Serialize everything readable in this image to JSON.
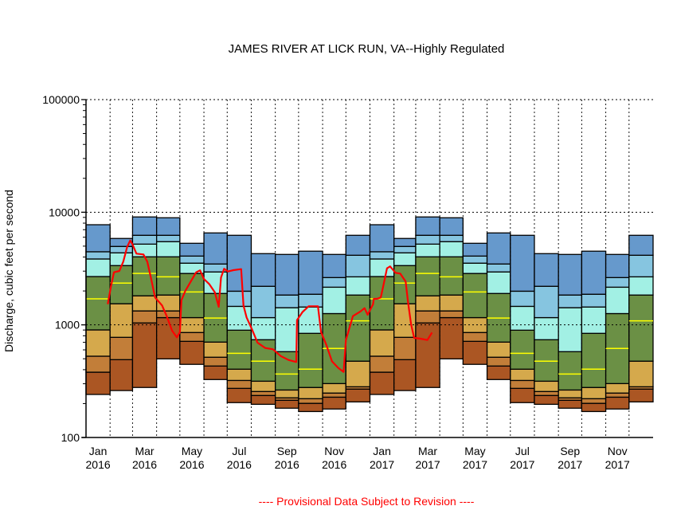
{
  "chart_data": {
    "type": "area",
    "title": "JAMES RIVER AT LICK RUN, VA--Highly Regulated",
    "ylabel": "Discharge, cubic feet per second",
    "xlabel": "",
    "footer": "---- Provisional Data Subject to Revision ----",
    "yscale": "log",
    "ylim": [
      100,
      100000
    ],
    "xlim": [
      "2016-01-01",
      "2018-01-01"
    ],
    "grid": "dotted vertical at month boundaries, dotted horizontal at decades",
    "y_ticks": [
      "100",
      "1000",
      "10000",
      "100000"
    ],
    "x_ticks": [
      {
        "month": "Jan",
        "year": "2016"
      },
      {
        "month": "Mar",
        "year": "2016"
      },
      {
        "month": "May",
        "year": "2016"
      },
      {
        "month": "Jul",
        "year": "2016"
      },
      {
        "month": "Sep",
        "year": "2016"
      },
      {
        "month": "Nov",
        "year": "2016"
      },
      {
        "month": "Jan",
        "year": "2017"
      },
      {
        "month": "Mar",
        "year": "2017"
      },
      {
        "month": "May",
        "year": "2017"
      },
      {
        "month": "Jul",
        "year": "2017"
      },
      {
        "month": "Sep",
        "year": "2017"
      },
      {
        "month": "Nov",
        "year": "2017"
      }
    ],
    "band_colors": [
      "#AB5623",
      "#C27E39",
      "#D5A94C",
      "#6B9045",
      "#A2F0E4",
      "#86C5E0",
      "#6699CC"
    ],
    "median_color": "#FFFF00",
    "line_color": "#FF0000",
    "monthly_bands": [
      {
        "month": "Jan",
        "levels": [
          241,
          380,
          527,
          902,
          2685,
          3846,
          4457,
          7745
        ],
        "median": 1702
      },
      {
        "month": "Feb",
        "levels": [
          261,
          491,
          775,
          1540,
          3360,
          4360,
          4970,
          5850
        ],
        "median": 2350
      },
      {
        "month": "Mar",
        "levels": [
          278,
          1040,
          1330,
          1810,
          4020,
          5210,
          6240,
          9080
        ],
        "median": 2860
      },
      {
        "month": "Apr",
        "levels": [
          499,
          1160,
          1330,
          1840,
          4020,
          5480,
          6240,
          8930
        ],
        "median": 2670
      },
      {
        "month": "May",
        "levels": [
          446,
          714,
          855,
          1160,
          2860,
          3530,
          4080,
          5300
        ],
        "median": 1960
      },
      {
        "month": "Jun",
        "levels": [
          327,
          431,
          516,
          703,
          1900,
          2950,
          3470,
          6550
        ],
        "median": 1150
      },
      {
        "month": "Jul",
        "levels": [
          204,
          273,
          321,
          404,
          897,
          1460,
          1990,
          6240
        ],
        "median": 559
      },
      {
        "month": "Aug",
        "levels": [
          197,
          236,
          256,
          316,
          738,
          1160,
          2200,
          4290
        ],
        "median": 476
      },
      {
        "month": "Sep",
        "levels": [
          182,
          214,
          225,
          264,
          578,
          1420,
          1840,
          4220
        ],
        "median": 366
      },
      {
        "month": "Oct",
        "levels": [
          170,
          201,
          221,
          278,
          841,
          1440,
          1870,
          4510
        ],
        "median": 404
      },
      {
        "month": "Nov",
        "levels": [
          179,
          228,
          248,
          301,
          1260,
          2160,
          2630,
          4220
        ],
        "median": 617
      },
      {
        "month": "Dec",
        "levels": [
          207,
          269,
          282,
          476,
          1840,
          2670,
          4150,
          6240
        ],
        "median": 1085
      }
    ],
    "series": [
      {
        "points": [
          [
            "2016-01-29",
            1527
          ],
          [
            "2016-02-02",
            2175
          ],
          [
            "2016-02-06",
            2930
          ],
          [
            "2016-02-13",
            3012
          ],
          [
            "2016-02-18",
            3646
          ],
          [
            "2016-02-23",
            4910
          ],
          [
            "2016-02-27",
            5620
          ],
          [
            "2016-03-01",
            5180
          ],
          [
            "2016-03-06",
            4290
          ],
          [
            "2016-03-15",
            4220
          ],
          [
            "2016-03-20",
            3646
          ],
          [
            "2016-03-25",
            2560
          ],
          [
            "2016-03-30",
            1750
          ],
          [
            "2016-04-08",
            1487
          ],
          [
            "2016-04-14",
            1196
          ],
          [
            "2016-04-21",
            887
          ],
          [
            "2016-04-27",
            775
          ],
          [
            "2016-05-01",
            863
          ],
          [
            "2016-05-03",
            1656
          ],
          [
            "2016-05-08",
            2004
          ],
          [
            "2016-05-15",
            2425
          ],
          [
            "2016-05-22",
            2930
          ],
          [
            "2016-05-27",
            3047
          ],
          [
            "2016-06-01",
            2560
          ],
          [
            "2016-06-08",
            2294
          ],
          [
            "2016-06-15",
            1950
          ],
          [
            "2016-06-20",
            1447
          ],
          [
            "2016-06-23",
            2631
          ],
          [
            "2016-06-27",
            3146
          ],
          [
            "2016-07-02",
            2978
          ],
          [
            "2016-07-09",
            3062
          ],
          [
            "2016-07-19",
            3126
          ],
          [
            "2016-07-22",
            1487
          ],
          [
            "2016-07-26",
            1165
          ],
          [
            "2016-08-02",
            912
          ],
          [
            "2016-08-09",
            695
          ],
          [
            "2016-08-19",
            623
          ],
          [
            "2016-08-29",
            607
          ],
          [
            "2016-09-08",
            529
          ],
          [
            "2016-09-18",
            488
          ],
          [
            "2016-09-28",
            468
          ],
          [
            "2016-09-29",
            1102
          ],
          [
            "2016-10-06",
            1297
          ],
          [
            "2016-10-14",
            1463
          ],
          [
            "2016-10-26",
            1463
          ],
          [
            "2016-10-30",
            863
          ],
          [
            "2016-11-06",
            659
          ],
          [
            "2016-11-13",
            475
          ],
          [
            "2016-11-21",
            415
          ],
          [
            "2016-11-28",
            382
          ],
          [
            "2016-12-01",
            733
          ],
          [
            "2016-12-10",
            1196
          ],
          [
            "2016-12-20",
            1318
          ],
          [
            "2016-12-25",
            1407
          ],
          [
            "2016-12-29",
            1230
          ],
          [
            "2017-01-05",
            1527
          ],
          [
            "2017-01-06",
            1703
          ],
          [
            "2017-01-10",
            1703
          ],
          [
            "2017-01-15",
            1750
          ],
          [
            "2017-01-18",
            2175
          ],
          [
            "2017-01-23",
            3178
          ],
          [
            "2017-01-27",
            3305
          ],
          [
            "2017-02-03",
            2902
          ],
          [
            "2017-02-09",
            2853
          ],
          [
            "2017-02-16",
            2425
          ],
          [
            "2017-02-19",
            1614
          ],
          [
            "2017-02-23",
            1016
          ],
          [
            "2017-02-27",
            766
          ],
          [
            "2017-03-07",
            754
          ],
          [
            "2017-03-16",
            733
          ],
          [
            "2017-03-22",
            855
          ]
        ]
      }
    ]
  }
}
